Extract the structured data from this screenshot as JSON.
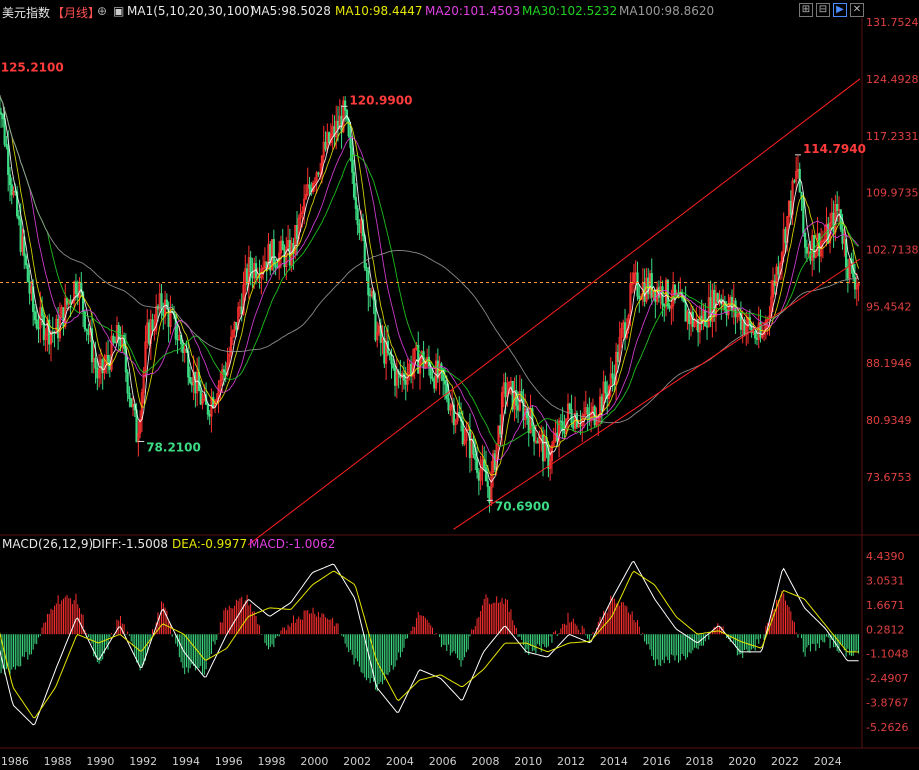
{
  "header": {
    "symbol": "美元指数",
    "period": "【月线】",
    "ma_group": "MA1(5,10,20,30,100)",
    "ma5": "MA5:98.5028",
    "ma10": "MA10:98.4447",
    "ma20": "MA20:101.4503",
    "ma30": "MA30:102.5232",
    "ma100": "MA100:98.8620",
    "colors": {
      "ma5": "#ffffff",
      "ma10": "#e6e600",
      "ma20": "#e040e0",
      "ma30": "#20d020",
      "ma100": "#9a9a9a"
    }
  },
  "window_controls": [
    "expand-icon",
    "restore-icon",
    "fullscreen-icon",
    "close-icon"
  ],
  "macd_header": {
    "title": "MACD(26,12,9)",
    "diff": "DIFF:-1.5008",
    "dea": "DEA:-0.9977",
    "macd": "MACD:-1.0062"
  },
  "chart_data": [
    {
      "type": "candlestick",
      "title": "",
      "y_ticks": [
        "131.7524",
        "124.4928",
        "117.2331",
        "109.9735",
        "102.7138",
        "95.4542",
        "88.1946",
        "80.9349",
        "73.6753"
      ],
      "y_tick_values": [
        131.7524,
        124.4928,
        117.2331,
        109.9735,
        102.7138,
        95.4542,
        88.1946,
        80.9349,
        73.6753
      ],
      "x_ticks": [
        "1986",
        "1988",
        "1990",
        "1992",
        "1994",
        "1996",
        "1998",
        "2000",
        "2002",
        "2004",
        "2006",
        "2008",
        "2010",
        "2012",
        "2014",
        "2016",
        "2018",
        "2020",
        "2022",
        "2024"
      ],
      "x_range": [
        1985.4,
        2025.6
      ],
      "current_price": 98.5,
      "peak_labels": [
        {
          "date": 1985.2,
          "value": 125.21,
          "label": "125.2100",
          "color": "#ff3b3b"
        },
        {
          "date": 1992.0,
          "value": 78.21,
          "label": "78.2100",
          "color": "#3ddc84"
        },
        {
          "date": 2001.5,
          "value": 120.99,
          "label": "120.9900",
          "color": "#ff3b3b"
        },
        {
          "date": 2008.3,
          "value": 70.69,
          "label": "70.6900",
          "color": "#3ddc84"
        },
        {
          "date": 2022.7,
          "value": 114.794,
          "label": "114.7940",
          "color": "#ff3b3b"
        }
      ],
      "close_path": [
        [
          1985.2,
          125
        ],
        [
          1986,
          110
        ],
        [
          1987,
          94
        ],
        [
          1988,
          92
        ],
        [
          1989,
          99
        ],
        [
          1990,
          86
        ],
        [
          1991,
          92
        ],
        [
          1991.8,
          79
        ],
        [
          1992.3,
          92
        ],
        [
          1993,
          96
        ],
        [
          1994,
          90
        ],
        [
          1995,
          82
        ],
        [
          1996,
          88
        ],
        [
          1997,
          100
        ],
        [
          1998,
          102
        ],
        [
          1999,
          102
        ],
        [
          2000,
          112
        ],
        [
          2000.7,
          116
        ],
        [
          2001.5,
          120
        ],
        [
          2002,
          110
        ],
        [
          2003,
          92
        ],
        [
          2004,
          86
        ],
        [
          2005,
          89
        ],
        [
          2006,
          86
        ],
        [
          2007,
          80
        ],
        [
          2008.3,
          72
        ],
        [
          2009,
          85
        ],
        [
          2010,
          82
        ],
        [
          2011,
          76
        ],
        [
          2012,
          82
        ],
        [
          2013,
          81
        ],
        [
          2014,
          86
        ],
        [
          2015,
          98
        ],
        [
          2016,
          98
        ],
        [
          2017,
          96
        ],
        [
          2018,
          93
        ],
        [
          2019,
          97
        ],
        [
          2020,
          94
        ],
        [
          2021,
          91
        ],
        [
          2022,
          104
        ],
        [
          2022.7,
          113
        ],
        [
          2023,
          103
        ],
        [
          2024,
          104
        ],
        [
          2024.6,
          108
        ],
        [
          2025,
          101
        ],
        [
          2025.5,
          98.5
        ]
      ],
      "trend_lines": [
        {
          "from": [
            1997,
            65
          ],
          "to": [
            2025.6,
            124.5
          ]
        },
        {
          "from": [
            2006.6,
            67
          ],
          "to": [
            2025.6,
            101.5
          ]
        }
      ]
    },
    {
      "type": "bar",
      "title": "MACD(26,12,9)",
      "y_ticks": [
        "4.4390",
        "3.0531",
        "1.6671",
        "0.2812",
        "-1.1048",
        "-2.4907",
        "-3.8767",
        "-5.2626"
      ],
      "y_tick_values": [
        4.439,
        3.0531,
        1.6671,
        0.2812,
        -1.1048,
        -2.4907,
        -3.8767,
        -5.2626
      ],
      "diff_path": [
        [
          1985.2,
          0
        ],
        [
          1986,
          -4
        ],
        [
          1987,
          -5.2
        ],
        [
          1988,
          -2
        ],
        [
          1989,
          1
        ],
        [
          1990,
          -1.5
        ],
        [
          1991,
          0.5
        ],
        [
          1992,
          -2
        ],
        [
          1993,
          1.5
        ],
        [
          1994,
          -1
        ],
        [
          1995,
          -2.5
        ],
        [
          1996,
          0
        ],
        [
          1997,
          2
        ],
        [
          1998,
          1
        ],
        [
          1999,
          1.8
        ],
        [
          2000,
          3.5
        ],
        [
          2001,
          4
        ],
        [
          2002,
          2
        ],
        [
          2003,
          -3
        ],
        [
          2004,
          -4.5
        ],
        [
          2005,
          -2
        ],
        [
          2006,
          -2.5
        ],
        [
          2007,
          -3.8
        ],
        [
          2008,
          -1
        ],
        [
          2009,
          0.5
        ],
        [
          2010,
          -1
        ],
        [
          2011,
          -1.3
        ],
        [
          2012,
          0
        ],
        [
          2013,
          -0.5
        ],
        [
          2014,
          2
        ],
        [
          2015,
          4.2
        ],
        [
          2016,
          2
        ],
        [
          2017,
          0.3
        ],
        [
          2018,
          -0.5
        ],
        [
          2019,
          0.5
        ],
        [
          2020,
          -1
        ],
        [
          2021,
          -1
        ],
        [
          2022,
          3.8
        ],
        [
          2023,
          1.5
        ],
        [
          2024,
          0.3
        ],
        [
          2025,
          -1.5
        ],
        [
          2025.5,
          -1.5
        ]
      ],
      "dea_path": [
        [
          1985.2,
          1
        ],
        [
          1986,
          -3
        ],
        [
          1987,
          -4.8
        ],
        [
          1988,
          -3
        ],
        [
          1989,
          0
        ],
        [
          1990,
          -0.5
        ],
        [
          1991,
          0
        ],
        [
          1992,
          -1
        ],
        [
          1993,
          0.6
        ],
        [
          1994,
          0
        ],
        [
          1995,
          -1.5
        ],
        [
          1996,
          -0.8
        ],
        [
          1997,
          1
        ],
        [
          1998,
          1.5
        ],
        [
          1999,
          1.4
        ],
        [
          2000,
          2.8
        ],
        [
          2001,
          3.6
        ],
        [
          2002,
          2.8
        ],
        [
          2003,
          -1.5
        ],
        [
          2004,
          -3.8
        ],
        [
          2005,
          -2.6
        ],
        [
          2006,
          -2.3
        ],
        [
          2007,
          -3
        ],
        [
          2008,
          -2
        ],
        [
          2009,
          -0.5
        ],
        [
          2010,
          -0.5
        ],
        [
          2011,
          -1
        ],
        [
          2012,
          -0.5
        ],
        [
          2013,
          -0.4
        ],
        [
          2014,
          1
        ],
        [
          2015,
          3.6
        ],
        [
          2016,
          2.8
        ],
        [
          2017,
          1
        ],
        [
          2018,
          0
        ],
        [
          2019,
          0.2
        ],
        [
          2020,
          -0.4
        ],
        [
          2021,
          -0.8
        ],
        [
          2022,
          2.5
        ],
        [
          2023,
          2
        ],
        [
          2024,
          0.5
        ],
        [
          2025,
          -1
        ],
        [
          2025.5,
          -1
        ]
      ]
    }
  ]
}
